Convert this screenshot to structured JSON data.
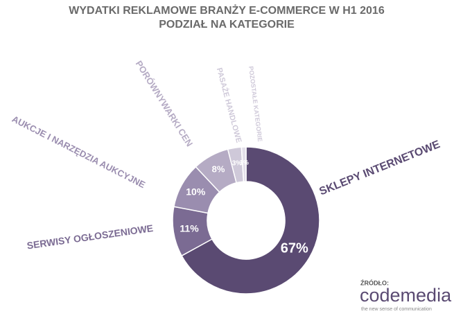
{
  "chart_data": {
    "type": "donut",
    "title": "WYDATKI REKLAMOWE BRANŻY E-COMMERCE W H1 2016",
    "subtitle": "PODZIAŁ NA KATEGORIE",
    "categories": [
      "SKLEPY INTERNETOWE",
      "SERWISY OGŁOSZENIOWE",
      "AUKCJE I NARZĘDZIA AUKCYJNE",
      "PORÓWNYWARKI CEN",
      "PASAŻE HANDLOWE",
      "POZOSTAŁE KATEGORIE"
    ],
    "values": [
      67,
      11,
      10,
      8,
      3,
      1
    ],
    "value_labels": [
      "67%",
      "11%",
      "10%",
      "8%",
      "3%",
      "1%"
    ],
    "colors": [
      "#5a4a72",
      "#7b6b93",
      "#9a8daf",
      "#b5abc4",
      "#cfc9d9",
      "#e3dfe9"
    ],
    "source_label": "ŹRÓDŁO:",
    "source": "codemedia",
    "source_tagline": "the new sense of communication"
  }
}
